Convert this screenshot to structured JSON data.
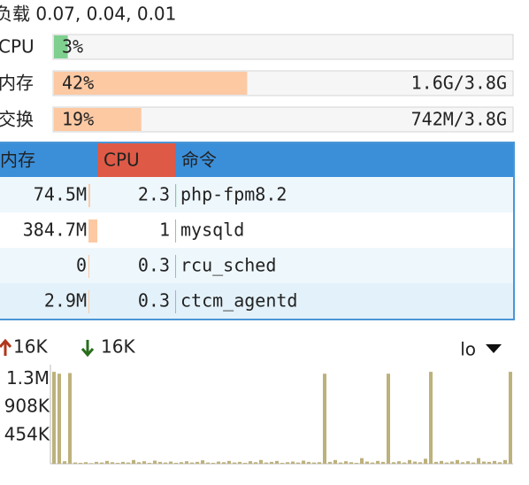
{
  "load": "负载 0.07, 0.04, 0.01",
  "meters": [
    {
      "label": "CPU",
      "percent": 3,
      "percent_label": "3%"
    },
    {
      "label": "内存",
      "percent": 42,
      "percent_label": "42%",
      "detail": "1.6G/3.8G"
    },
    {
      "label": "交换",
      "percent": 19,
      "percent_label": "19%",
      "detail": "742M/3.8G"
    }
  ],
  "table": {
    "headers": [
      "内存",
      "CPU",
      "命令"
    ],
    "rows": [
      {
        "mem": 74.5,
        "mem_label": "74.5M",
        "cpu": 2.3,
        "command": "php-fpm8.2"
      },
      {
        "mem": 384.7,
        "mem_label": "384.7M",
        "cpu": 1,
        "command": "mysqld"
      },
      {
        "mem": 0,
        "cpu": 0.3,
        "command": "rcu_sched"
      },
      {
        "mem": 2.9,
        "mem_label": "2.9M",
        "cpu": 0.3,
        "command": "ctcm_agentd"
      }
    ]
  },
  "network": {
    "up": "16K",
    "down": "16K",
    "interface": "lo",
    "chart_data": {
      "type": "bar",
      "color": "#bdb17c",
      "ylim": [
        0,
        1500000
      ],
      "yticks": [
        {
          "value": 1349000,
          "label": "1.3M"
        },
        {
          "value": 908000,
          "label": "908K"
        },
        {
          "value": 454000,
          "label": "454K"
        }
      ],
      "values": [
        1470000,
        1440000,
        40000,
        1450000,
        20000,
        15000,
        25000,
        10000,
        30000,
        20000,
        45000,
        25000,
        15000,
        30000,
        20000,
        60000,
        25000,
        40000,
        15000,
        50000,
        30000,
        20000,
        35000,
        15000,
        25000,
        40000,
        20000,
        30000,
        55000,
        20000,
        15000,
        35000,
        25000,
        45000,
        20000,
        30000,
        15000,
        40000,
        25000,
        60000,
        20000,
        30000,
        45000,
        15000,
        25000,
        35000,
        20000,
        50000,
        30000,
        20000,
        25000,
        1440000,
        30000,
        60000,
        20000,
        40000,
        25000,
        15000,
        90000,
        35000,
        20000,
        45000,
        30000,
        1440000,
        25000,
        40000,
        20000,
        60000,
        35000,
        25000,
        80000,
        1470000,
        30000,
        45000,
        20000,
        35000,
        60000,
        25000,
        40000,
        20000,
        90000,
        35000,
        30000,
        45000,
        25000,
        60000,
        1470000
      ]
    }
  }
}
